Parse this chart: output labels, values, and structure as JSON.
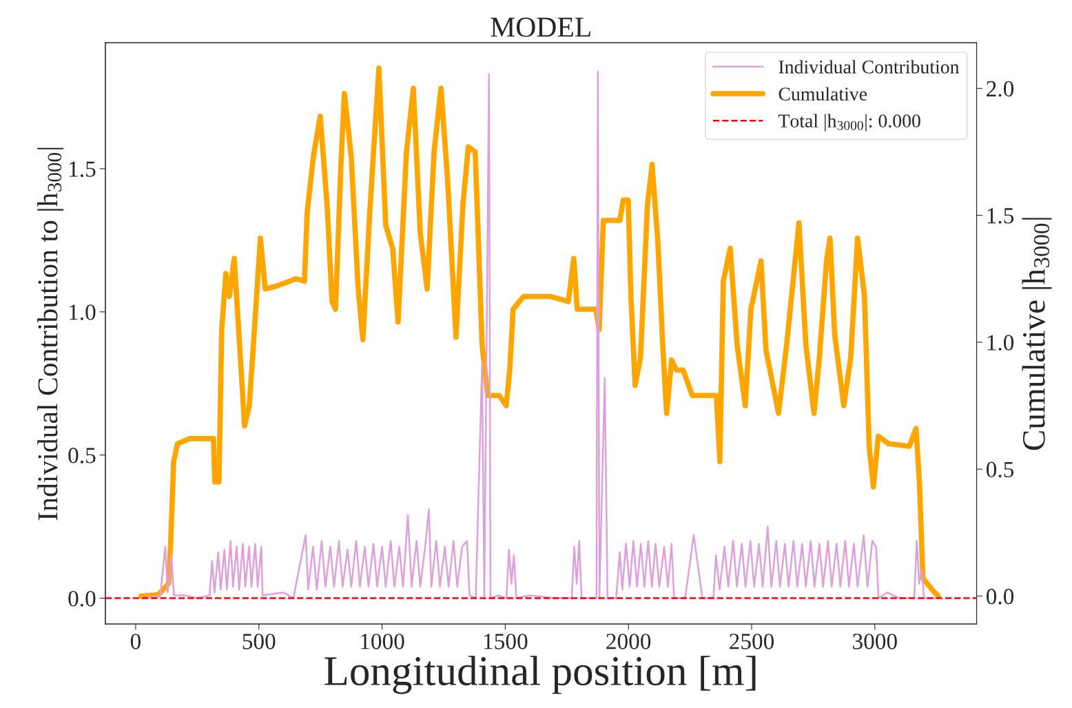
{
  "chart_data": {
    "type": "line",
    "title": "MODEL",
    "xlabel": "Longitudinal position [m]",
    "ylabel": "Individual Contribution to |h$_{3000}$|",
    "y2label": "Cumulative |h$_{3000}$|",
    "xlim": [
      -123,
      3413
    ],
    "xticks": [
      0,
      500,
      1000,
      1500,
      2000,
      2500,
      3000
    ],
    "ylim": [
      -0.09,
      1.94
    ],
    "yticks": [
      {
        "value": 0,
        "label": "0.0"
      },
      {
        "value": 0.5,
        "label": "0.5"
      },
      {
        "value": 1,
        "label": "1.0"
      },
      {
        "value": 1.5,
        "label": "1.5"
      }
    ],
    "y2lim": [
      -0.11,
      2.18
    ],
    "y2ticks": [
      {
        "value": 0,
        "label": "0.0"
      },
      {
        "value": 0.5,
        "label": "0.5"
      },
      {
        "value": 1,
        "label": "1.0"
      },
      {
        "value": 1.5,
        "label": "1.5"
      },
      {
        "value": 2,
        "label": "2.0"
      }
    ],
    "grid": false,
    "legend": "top right",
    "marker": "none",
    "series": [
      {
        "name": "Individual Contribution",
        "color": "#dda0dd",
        "axis": "y",
        "line_style": "solid",
        "x": [
          30,
          100,
          120,
          130,
          145,
          155,
          200,
          250,
          300,
          310,
          320,
          335,
          345,
          360,
          370,
          385,
          395,
          410,
          420,
          435,
          445,
          460,
          470,
          485,
          495,
          510,
          515,
          600,
          640,
          690,
          700,
          720,
          735,
          755,
          770,
          790,
          805,
          825,
          840,
          860,
          875,
          895,
          910,
          930,
          945,
          965,
          980,
          1000,
          1015,
          1035,
          1050,
          1070,
          1085,
          1105,
          1120,
          1140,
          1155,
          1175,
          1190,
          1200,
          1220,
          1235,
          1255,
          1270,
          1290,
          1305,
          1325,
          1345,
          1355,
          1380,
          1406,
          1415,
          1434,
          1440,
          1470,
          1505,
          1515,
          1525,
          1535,
          1545,
          1600,
          1700,
          1770,
          1780,
          1790,
          1800,
          1810,
          1850,
          1870,
          1876,
          1882,
          1904,
          1915,
          1950,
          1965,
          1975,
          1990,
          2005,
          2020,
          2035,
          2050,
          2065,
          2080,
          2095,
          2110,
          2125,
          2145,
          2160,
          2175,
          2185,
          2230,
          2265,
          2300,
          2345,
          2355,
          2370,
          2390,
          2405,
          2425,
          2440,
          2460,
          2475,
          2495,
          2510,
          2530,
          2545,
          2565,
          2580,
          2600,
          2615,
          2635,
          2650,
          2670,
          2685,
          2705,
          2720,
          2740,
          2755,
          2775,
          2790,
          2810,
          2825,
          2845,
          2860,
          2880,
          2895,
          2915,
          2930,
          2955,
          2970,
          2990,
          3005,
          3015,
          3050,
          3100,
          3160,
          3170,
          3180,
          3190,
          3200,
          3250
        ],
        "values": [
          0.0,
          0.01,
          0.18,
          0.02,
          0.15,
          0.01,
          0.01,
          0.0,
          0.01,
          0.13,
          0.02,
          0.16,
          0.03,
          0.17,
          0.03,
          0.2,
          0.04,
          0.18,
          0.03,
          0.19,
          0.04,
          0.18,
          0.04,
          0.19,
          0.04,
          0.18,
          0.01,
          0.02,
          0.0,
          0.22,
          0.03,
          0.18,
          0.03,
          0.2,
          0.04,
          0.18,
          0.04,
          0.2,
          0.04,
          0.17,
          0.04,
          0.2,
          0.04,
          0.18,
          0.04,
          0.19,
          0.04,
          0.18,
          0.04,
          0.2,
          0.04,
          0.18,
          0.04,
          0.29,
          0.04,
          0.2,
          0.04,
          0.18,
          0.31,
          0.04,
          0.2,
          0.04,
          0.18,
          0.04,
          0.2,
          0.04,
          0.18,
          0.2,
          0.01,
          0.0,
          0.82,
          0.0,
          1.83,
          0.0,
          0.01,
          0.0,
          0.17,
          0.05,
          0.15,
          0.0,
          0.01,
          0.0,
          0.0,
          0.18,
          0.05,
          0.2,
          0.0,
          0.0,
          0.0,
          1.84,
          0.0,
          0.77,
          0.0,
          0.0,
          0.16,
          0.03,
          0.19,
          0.04,
          0.2,
          0.04,
          0.19,
          0.04,
          0.2,
          0.04,
          0.19,
          0.04,
          0.18,
          0.04,
          0.19,
          0.0,
          0.0,
          0.22,
          0.0,
          0.0,
          0.15,
          0.03,
          0.18,
          0.04,
          0.2,
          0.04,
          0.19,
          0.04,
          0.2,
          0.04,
          0.19,
          0.04,
          0.25,
          0.04,
          0.2,
          0.04,
          0.19,
          0.04,
          0.2,
          0.04,
          0.19,
          0.04,
          0.2,
          0.04,
          0.19,
          0.04,
          0.2,
          0.04,
          0.19,
          0.04,
          0.2,
          0.04,
          0.19,
          0.04,
          0.22,
          0.04,
          0.2,
          0.18,
          0.0,
          0.02,
          0.0,
          0.0,
          0.2,
          0.05,
          0.1,
          0.0,
          0.0
        ]
      },
      {
        "name": "Cumulative",
        "color": "#ffa500",
        "axis": "y2",
        "line_style": "solid",
        "x": [
          22,
          92,
          134,
          142,
          154,
          170,
          218,
          316,
          321,
          338,
          349,
          366,
          380,
          400,
          428,
          442,
          461,
          484,
          506,
          526,
          568,
          651,
          685,
          696,
          721,
          749,
          777,
          797,
          811,
          833,
          847,
          875,
          903,
          922,
          950,
          987,
          1015,
          1043,
          1065,
          1099,
          1127,
          1155,
          1183,
          1211,
          1239,
          1266,
          1300,
          1328,
          1350,
          1378,
          1406,
          1429,
          1476,
          1504,
          1518,
          1532,
          1574,
          1686,
          1756,
          1778,
          1792,
          1868,
          1881,
          1898,
          1965,
          1979,
          1999,
          2010,
          2027,
          2049,
          2077,
          2096,
          2119,
          2139,
          2155,
          2175,
          2195,
          2222,
          2259,
          2357,
          2371,
          2385,
          2413,
          2441,
          2474,
          2497,
          2538,
          2558,
          2609,
          2642,
          2692,
          2720,
          2753,
          2775,
          2804,
          2818,
          2837,
          2874,
          2902,
          2930,
          2958,
          2977,
          2994,
          3014,
          3056,
          3140,
          3167,
          3181,
          3195,
          3237,
          3257
        ],
        "values": [
          0.0,
          0.005,
          0.05,
          0.21,
          0.53,
          0.6,
          0.62,
          0.62,
          0.45,
          0.45,
          1.05,
          1.27,
          1.18,
          1.33,
          0.89,
          0.67,
          0.75,
          1.08,
          1.41,
          1.21,
          1.22,
          1.25,
          1.24,
          1.51,
          1.73,
          1.89,
          1.54,
          1.16,
          1.13,
          1.7,
          1.98,
          1.73,
          1.21,
          1.01,
          1.51,
          2.08,
          1.46,
          1.37,
          1.08,
          1.75,
          2.0,
          1.43,
          1.21,
          1.75,
          2.0,
          1.64,
          1.02,
          1.54,
          1.77,
          1.75,
          0.99,
          0.79,
          0.79,
          0.75,
          0.89,
          1.13,
          1.18,
          1.18,
          1.16,
          1.33,
          1.13,
          1.13,
          1.05,
          1.48,
          1.48,
          1.56,
          1.56,
          1.18,
          0.83,
          0.94,
          1.54,
          1.7,
          1.4,
          0.99,
          0.72,
          0.93,
          0.89,
          0.89,
          0.79,
          0.79,
          0.53,
          1.24,
          1.37,
          0.99,
          0.75,
          1.13,
          1.32,
          0.97,
          0.72,
          0.99,
          1.47,
          0.99,
          0.72,
          0.94,
          1.32,
          1.41,
          1.03,
          0.75,
          0.94,
          1.41,
          1.18,
          0.59,
          0.43,
          0.63,
          0.6,
          0.59,
          0.66,
          0.45,
          0.07,
          0.02,
          0.0
        ]
      }
    ],
    "ref_lines": [
      {
        "axis": "y",
        "value": 0,
        "label": "Total |h$_{3000}$|: 0.000",
        "color": "#ff0000",
        "line_style": "dashed"
      }
    ]
  }
}
